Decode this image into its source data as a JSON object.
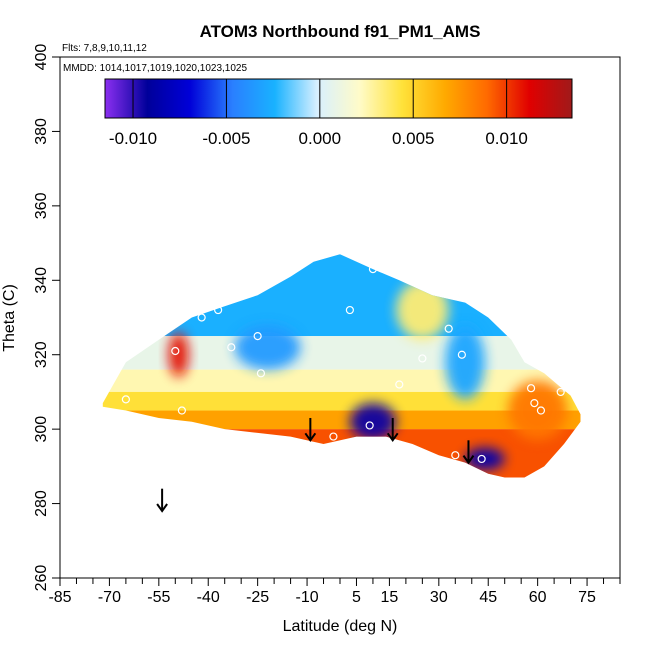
{
  "chart_data": {
    "type": "heatmap",
    "title": "ATOM3 Northbound f91_PM1_AMS",
    "subtitle_flights": "Flts: 7,8,9,10,11,12",
    "subtitle_dates": "MMDD: 1014,1017,1019,1020,1023,1025",
    "xlabel": "Latitude (deg N)",
    "ylabel": "Theta (C)",
    "xlim": [
      -85,
      85
    ],
    "ylim": [
      260,
      400
    ],
    "x_ticks": [
      -85,
      -70,
      -55,
      -40,
      -25,
      -10,
      5,
      15,
      30,
      45,
      60,
      75
    ],
    "y_ticks": [
      260,
      280,
      300,
      320,
      340,
      360,
      380,
      400
    ],
    "colorbar": {
      "min": -0.0115,
      "max": 0.0135,
      "tick_values": [
        -0.01,
        -0.005,
        0.0,
        0.005,
        0.01
      ],
      "tick_labels": [
        "-0.010",
        "-0.005",
        "0.000",
        "0.005",
        "0.010"
      ],
      "colors": [
        "#8b2ff0",
        "#00009a",
        "#0000d8",
        "#2a7fff",
        "#19b2ff",
        "#d8f0ff",
        "#fffbc8",
        "#ffe23a",
        "#ffaa00",
        "#ff6a00",
        "#e00000",
        "#a01a1a"
      ]
    },
    "tropopause_arrows_lat": [
      -54,
      -9,
      16,
      39
    ],
    "field": {
      "envelope_upper": [
        [
          -72,
          307
        ],
        [
          -65,
          318
        ],
        [
          -55,
          324
        ],
        [
          -45,
          330
        ],
        [
          -35,
          333
        ],
        [
          -25,
          336
        ],
        [
          -15,
          341
        ],
        [
          -8,
          345
        ],
        [
          0,
          347
        ],
        [
          10,
          343
        ],
        [
          18,
          340
        ],
        [
          28,
          336
        ],
        [
          38,
          334
        ],
        [
          45,
          330
        ],
        [
          52,
          324
        ],
        [
          56,
          318
        ],
        [
          62,
          315
        ],
        [
          70,
          309
        ],
        [
          73,
          304
        ]
      ],
      "envelope_lower": [
        [
          73,
          302
        ],
        [
          68,
          296
        ],
        [
          62,
          290
        ],
        [
          56,
          287
        ],
        [
          50,
          287
        ],
        [
          45,
          288
        ],
        [
          38,
          291
        ],
        [
          30,
          293
        ],
        [
          22,
          296
        ],
        [
          14,
          298
        ],
        [
          5,
          298
        ],
        [
          -5,
          296
        ],
        [
          -15,
          298
        ],
        [
          -25,
          299
        ],
        [
          -35,
          300
        ],
        [
          -45,
          302
        ],
        [
          -55,
          303
        ],
        [
          -65,
          305
        ],
        [
          -72,
          306
        ]
      ],
      "bands": [
        {
          "theta_hi": 347,
          "theta_lo": 325,
          "value": -0.0025
        },
        {
          "theta_hi": 325,
          "theta_lo": 316,
          "value": 0.0008
        },
        {
          "theta_hi": 316,
          "theta_lo": 310,
          "value": 0.0025
        },
        {
          "theta_hi": 310,
          "theta_lo": 305,
          "value": 0.0045
        },
        {
          "theta_hi": 305,
          "theta_lo": 300,
          "value": 0.007
        },
        {
          "theta_hi": 300,
          "theta_lo": 286,
          "value": 0.0095
        }
      ],
      "blobs": [
        {
          "lat": -49,
          "theta": 320,
          "r_lat": 3,
          "r_theta": 6,
          "value": 0.011
        },
        {
          "lat": 10,
          "theta": 302,
          "r_lat": 7,
          "r_theta": 5,
          "value": -0.0095
        },
        {
          "lat": 44,
          "theta": 292,
          "r_lat": 6,
          "r_theta": 3,
          "value": -0.0085
        },
        {
          "lat": 60,
          "theta": 305,
          "r_lat": 9,
          "r_theta": 8,
          "value": 0.0085
        },
        {
          "lat": 38,
          "theta": 318,
          "r_lat": 6,
          "r_theta": 10,
          "value": -0.003
        },
        {
          "lat": -22,
          "theta": 322,
          "r_lat": 10,
          "r_theta": 6,
          "value": -0.0035
        },
        {
          "lat": 25,
          "theta": 332,
          "r_lat": 8,
          "r_theta": 8,
          "value": 0.0035
        }
      ],
      "sample_points": [
        [
          -65,
          308
        ],
        [
          -50,
          321
        ],
        [
          -48,
          305
        ],
        [
          -42,
          330
        ],
        [
          -37,
          332
        ],
        [
          -33,
          322
        ],
        [
          -25,
          325
        ],
        [
          -24,
          315
        ],
        [
          -2,
          298
        ],
        [
          3,
          332
        ],
        [
          9,
          301
        ],
        [
          10,
          343
        ],
        [
          18,
          312
        ],
        [
          25,
          319
        ],
        [
          33,
          327
        ],
        [
          35,
          293
        ],
        [
          37,
          320
        ],
        [
          43,
          292
        ],
        [
          58,
          311
        ],
        [
          59,
          307
        ],
        [
          61,
          305
        ],
        [
          67,
          310
        ]
      ]
    }
  }
}
